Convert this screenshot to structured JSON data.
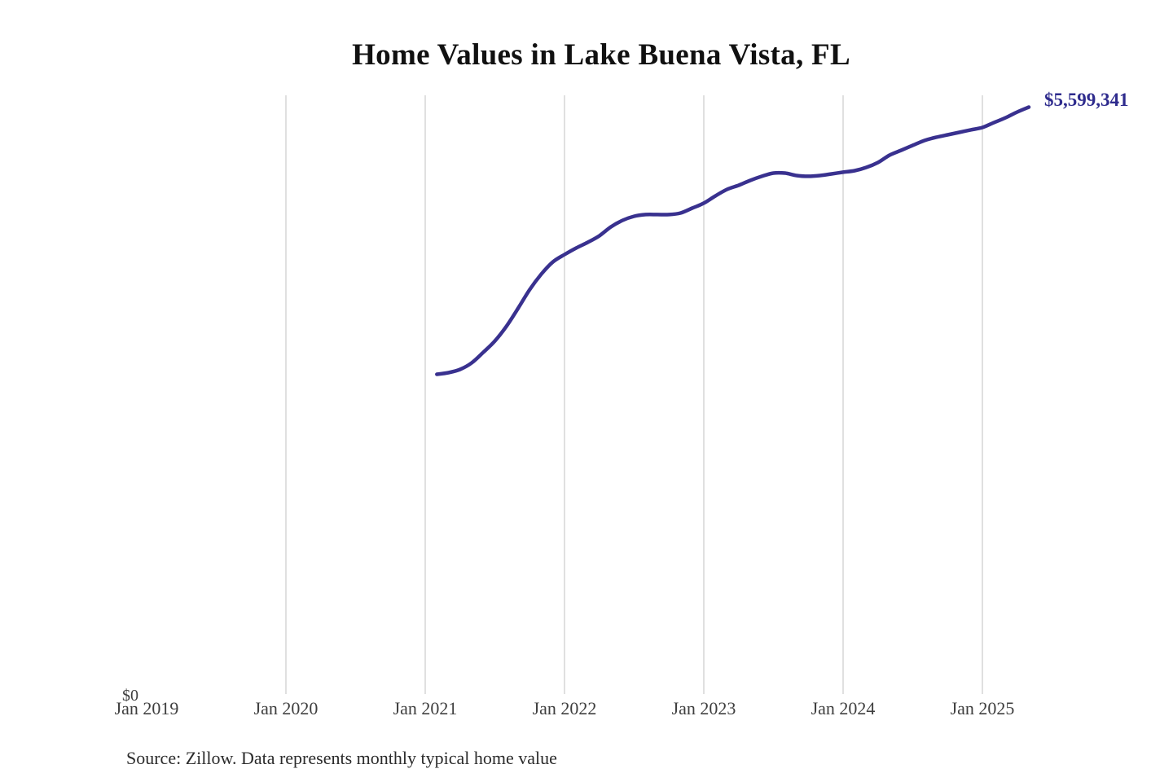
{
  "title": "Home Values in Lake Buena Vista, FL",
  "annotation": {
    "end_value_label": "$5,599,341"
  },
  "y_axis": {
    "zero_label": "$0"
  },
  "footer": {
    "source_note": "Source: Zillow. Data represents monthly typical home value"
  },
  "colors": {
    "title": "#111111",
    "line": "#39318f",
    "annotation": "#2e2b8d",
    "grid": "#cbcbcb",
    "axis_text": "#3e3e3e",
    "source_text": "#2b2b2b"
  },
  "chart_data": {
    "type": "line",
    "title": "Home Values in Lake Buena Vista, FL",
    "series_name": "Monthly typical home value",
    "xlabel": "",
    "ylabel": "",
    "ylim": [
      0,
      5710000
    ],
    "grid": "vertical-year-gridlines",
    "legend": "none",
    "end_annotation": "$5,599,341",
    "source": "Zillow",
    "x_ticks": [
      "Jan 2019",
      "Jan 2020",
      "Jan 2021",
      "Jan 2022",
      "Jan 2023",
      "Jan 2024",
      "Jan 2025"
    ],
    "x": [
      "2021-02",
      "2021-03",
      "2021-04",
      "2021-05",
      "2021-06",
      "2021-07",
      "2021-08",
      "2021-09",
      "2021-10",
      "2021-11",
      "2021-12",
      "2022-01",
      "2022-02",
      "2022-03",
      "2022-04",
      "2022-05",
      "2022-06",
      "2022-07",
      "2022-08",
      "2022-09",
      "2022-10",
      "2022-11",
      "2022-12",
      "2023-01",
      "2023-02",
      "2023-03",
      "2023-04",
      "2023-05",
      "2023-06",
      "2023-07",
      "2023-08",
      "2023-09",
      "2023-10",
      "2023-11",
      "2023-12",
      "2024-01",
      "2024-02",
      "2024-03",
      "2024-04",
      "2024-05",
      "2024-06",
      "2024-07",
      "2024-08",
      "2024-09",
      "2024-10",
      "2024-11",
      "2024-12",
      "2025-01",
      "2025-02",
      "2025-03",
      "2025-04",
      "2025-05"
    ],
    "values": [
      3045000,
      3061000,
      3092000,
      3154000,
      3255000,
      3364000,
      3505000,
      3676000,
      3855000,
      4003000,
      4120000,
      4190000,
      4252000,
      4307000,
      4369000,
      4455000,
      4517000,
      4556000,
      4572000,
      4572000,
      4572000,
      4587000,
      4634000,
      4681000,
      4751000,
      4813000,
      4852000,
      4899000,
      4938000,
      4969000,
      4969000,
      4945000,
      4938000,
      4945000,
      4961000,
      4977000,
      4992000,
      5023000,
      5070000,
      5140000,
      5187000,
      5234000,
      5280000,
      5311000,
      5335000,
      5358000,
      5382000,
      5405000,
      5452000,
      5498000,
      5553000,
      5599341
    ]
  }
}
